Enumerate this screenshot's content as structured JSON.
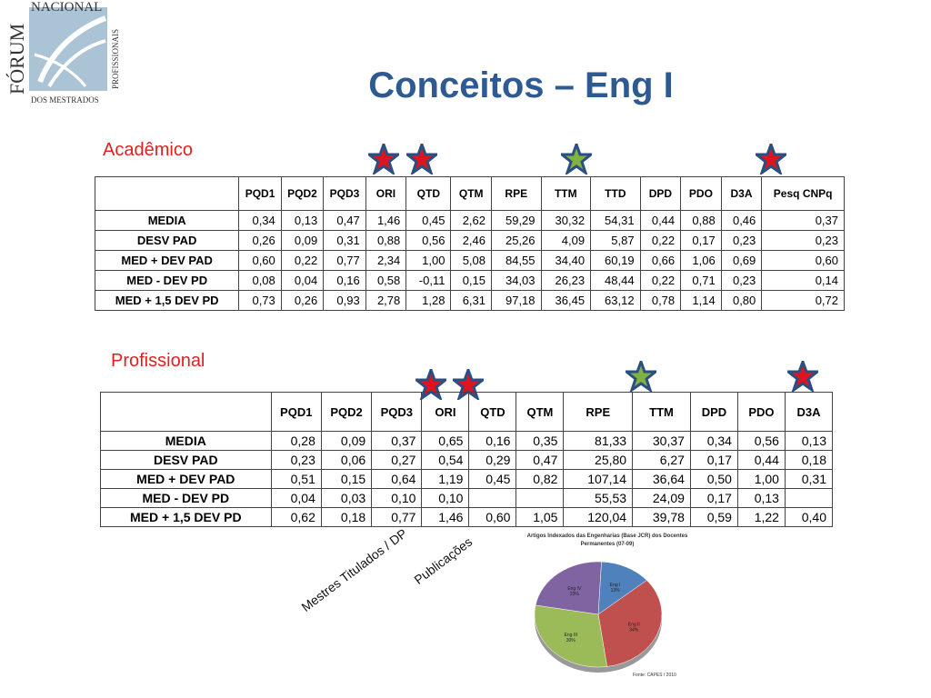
{
  "logo": {
    "top_text": "NACIONAL",
    "left_text": "FÓRUM",
    "right_text": "PROFISSIONAIS",
    "bottom_text": "DOS MESTRADOS"
  },
  "title": "Conceitos – Eng I",
  "academico": {
    "label": "Acadêmico",
    "headers": [
      "",
      "PQD1",
      "PQD2",
      "PQD3",
      "ORI",
      "QTD",
      "QTM",
      "RPE",
      "TTM",
      "TTD",
      "DPD",
      "PDO",
      "D3A",
      "Pesq CNPq"
    ],
    "rows": [
      {
        "label": "MEDIA",
        "values": [
          "0,34",
          "0,13",
          "0,47",
          "1,46",
          "0,45",
          "2,62",
          "59,29",
          "30,32",
          "54,31",
          "0,44",
          "0,88",
          "0,46",
          "0,37"
        ]
      },
      {
        "label": "DESV PAD",
        "values": [
          "0,26",
          "0,09",
          "0,31",
          "0,88",
          "0,56",
          "2,46",
          "25,26",
          "4,09",
          "5,87",
          "0,22",
          "0,17",
          "0,23",
          "0,23"
        ]
      },
      {
        "label": "MED + DEV PAD",
        "values": [
          "0,60",
          "0,22",
          "0,77",
          "2,34",
          "1,00",
          "5,08",
          "84,55",
          "34,40",
          "60,19",
          "0,66",
          "1,06",
          "0,69",
          "0,60"
        ]
      },
      {
        "label": "MED - DEV PD",
        "values": [
          "0,08",
          "0,04",
          "0,16",
          "0,58",
          "-0,11",
          "0,15",
          "34,03",
          "26,23",
          "48,44",
          "0,22",
          "0,71",
          "0,23",
          "0,14"
        ]
      },
      {
        "label": "MED + 1,5 DEV PD",
        "values": [
          "0,73",
          "0,26",
          "0,93",
          "2,78",
          "1,28",
          "6,31",
          "97,18",
          "36,45",
          "63,12",
          "0,78",
          "1,14",
          "0,80",
          "0,72"
        ]
      }
    ]
  },
  "profissional": {
    "label": "Profissional",
    "headers": [
      "",
      "PQD1",
      "PQD2",
      "PQD3",
      "ORI",
      "QTD",
      "QTM",
      "RPE",
      "TTM",
      "DPD",
      "PDO",
      "D3A"
    ],
    "rows": [
      {
        "label": "MEDIA",
        "values": [
          "0,28",
          "0,09",
          "0,37",
          "0,65",
          "0,16",
          "0,35",
          "81,33",
          "30,37",
          "0,34",
          "0,56",
          "0,13"
        ]
      },
      {
        "label": "DESV PAD",
        "values": [
          "0,23",
          "0,06",
          "0,27",
          "0,54",
          "0,29",
          "0,47",
          "25,80",
          "6,27",
          "0,17",
          "0,44",
          "0,18"
        ]
      },
      {
        "label": "MED + DEV PAD",
        "values": [
          "0,51",
          "0,15",
          "0,64",
          "1,19",
          "0,45",
          "0,82",
          "107,14",
          "36,64",
          "0,50",
          "1,00",
          "0,31"
        ]
      },
      {
        "label": "MED - DEV PD",
        "values": [
          "0,04",
          "0,03",
          "0,10",
          "0,10",
          "",
          "",
          "55,53",
          "24,09",
          "0,17",
          "0,13",
          ""
        ]
      },
      {
        "label": "MED + 1,5 DEV PD",
        "values": [
          "0,62",
          "0,18",
          "0,77",
          "1,46",
          "0,60",
          "1,05",
          "120,04",
          "39,78",
          "0,59",
          "1,22",
          "0,40"
        ]
      }
    ]
  },
  "annotations": {
    "mestres": "Mestres Titulados / DP",
    "publicacoes": "Publicações"
  },
  "colors": {
    "star_red": "#e0141e",
    "star_green": "#7fb241",
    "star_border": "#2b4f82",
    "title": "#2e5a94"
  },
  "pie": {
    "title": "Artigos Indexados das Engenharias (Base JCR) dos Docentes Permanentes (07-09)",
    "source": "Fonte: CAPES / 2010",
    "chart_data": {
      "type": "pie",
      "categories": [
        "Eng I",
        "Eng II",
        "Eng III",
        "Eng IV"
      ],
      "values": [
        13,
        34,
        30,
        23
      ],
      "labels": [
        "Eng I\n13%",
        "Eng II\n34%",
        "Eng III\n30%",
        "Eng IV\n23%"
      ],
      "colors": [
        "#4f81bd",
        "#c0504d",
        "#9bbb59",
        "#8064a2"
      ]
    }
  }
}
